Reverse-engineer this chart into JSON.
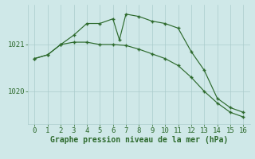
{
  "line1_x": [
    0,
    1,
    2,
    3,
    4,
    5,
    6,
    6.5,
    7,
    8,
    9,
    10,
    11,
    12,
    13,
    14,
    15,
    16
  ],
  "line1_y": [
    1020.7,
    1020.78,
    1021.0,
    1021.2,
    1021.45,
    1021.45,
    1021.55,
    1021.1,
    1021.65,
    1021.6,
    1021.5,
    1021.45,
    1021.35,
    1020.85,
    1020.45,
    1019.85,
    1019.65,
    1019.55
  ],
  "line2_x": [
    0,
    1,
    2,
    3,
    4,
    5,
    6,
    7,
    8,
    9,
    10,
    11,
    12,
    13,
    14,
    15,
    16
  ],
  "line2_y": [
    1020.7,
    1020.78,
    1021.0,
    1021.05,
    1021.05,
    1021.0,
    1021.0,
    1020.98,
    1020.9,
    1020.8,
    1020.7,
    1020.55,
    1020.3,
    1020.0,
    1019.75,
    1019.55,
    1019.45
  ],
  "line_color": "#2d6a2d",
  "marker": "+",
  "xlabel": "Graphe pression niveau de la mer (hPa)",
  "yticks": [
    1020,
    1021
  ],
  "xticks": [
    0,
    1,
    2,
    3,
    4,
    5,
    6,
    7,
    8,
    9,
    10,
    11,
    12,
    13,
    14,
    15,
    16
  ],
  "xlim": [
    -0.5,
    16.5
  ],
  "ylim": [
    1019.3,
    1021.85
  ],
  "background_color": "#cfe8e8",
  "grid_color": "#aacccc",
  "xlabel_fontsize": 7,
  "tick_fontsize": 6.5,
  "linewidth": 0.85,
  "markersize": 3.5,
  "markeredgewidth": 1.0
}
